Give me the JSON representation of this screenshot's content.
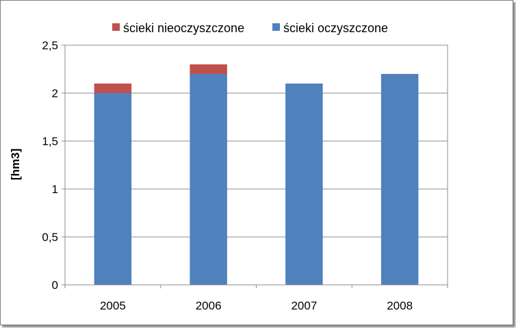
{
  "chart_data": {
    "type": "bar",
    "stacked": true,
    "categories": [
      "2005",
      "2006",
      "2007",
      "2008"
    ],
    "series": [
      {
        "name": "ścieki oczyszczone",
        "values": [
          2.0,
          2.2,
          2.1,
          2.2
        ],
        "color": "#4f81bd"
      },
      {
        "name": "ścieki nieoczyszczone",
        "values": [
          0.1,
          0.1,
          0,
          0
        ],
        "color": "#c0504d"
      }
    ],
    "legend_order": [
      1,
      0
    ],
    "ylabel": "[hm3]",
    "xlabel": "",
    "ylim": [
      0,
      2.5
    ],
    "yticks": [
      0,
      0.5,
      1,
      1.5,
      2,
      2.5
    ],
    "ytick_labels": [
      "0",
      "0,5",
      "1",
      "1,5",
      "2",
      "2,5"
    ],
    "grid": true,
    "legend_position": "top"
  }
}
